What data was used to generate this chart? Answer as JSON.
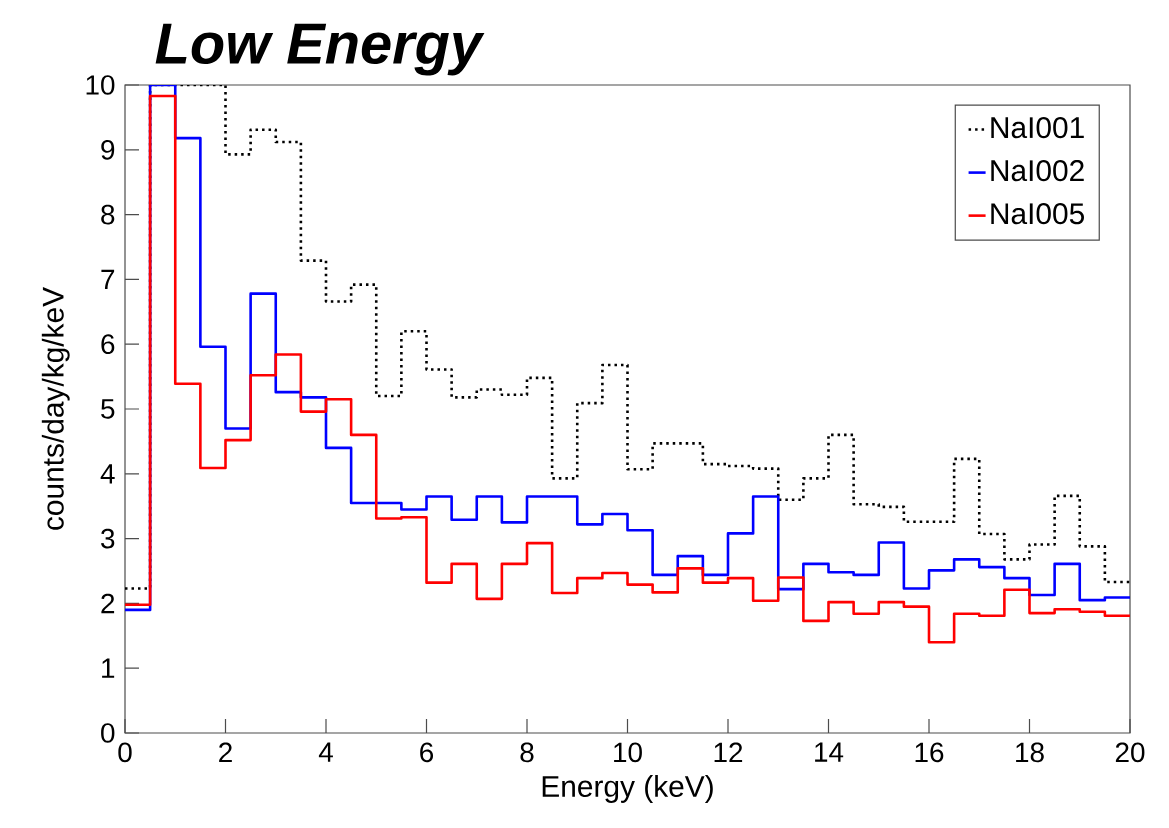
{
  "chart_data": {
    "type": "histogram",
    "title": "Low Energy",
    "xlabel": "Energy (keV)",
    "ylabel": "counts/day/kg/keV",
    "bins": [
      0,
      0.5,
      1,
      1.5,
      2,
      2.5,
      3,
      3.5,
      4,
      4.5,
      5,
      5.5,
      6,
      6.5,
      7,
      7.5,
      8,
      8.5,
      9,
      9.5,
      10,
      10.5,
      11,
      11.5,
      12,
      12.5,
      13,
      13.5,
      14,
      14.5,
      15,
      15.5,
      16,
      16.5,
      17,
      17.5,
      18,
      18.5,
      19,
      19.5,
      20
    ],
    "series": [
      {
        "name": "NaI001",
        "color": "#000000",
        "line_style": "dotted",
        "values": [
          2.23,
          10,
          10,
          10,
          8.93,
          9.31,
          9.12,
          7.29,
          6.66,
          6.92,
          5.2,
          6.2,
          5.61,
          5.18,
          5.3,
          5.22,
          5.48,
          3.93,
          5.09,
          5.68,
          4.07,
          4.47,
          4.47,
          4.15,
          4.12,
          4.08,
          3.6,
          3.93,
          4.6,
          3.53,
          3.49,
          3.26,
          3.26,
          4.23,
          3.07,
          2.68,
          2.91,
          3.66,
          2.88,
          2.33
        ]
      },
      {
        "name": "NaI002",
        "color": "#0000ff",
        "line_style": "solid",
        "values": [
          1.9,
          10,
          9.18,
          5.96,
          4.7,
          6.78,
          5.26,
          5.18,
          4.4,
          3.55,
          3.55,
          3.45,
          3.65,
          3.29,
          3.65,
          3.25,
          3.65,
          3.65,
          3.22,
          3.38,
          3.13,
          2.44,
          2.73,
          2.44,
          3.08,
          3.65,
          2.22,
          2.61,
          2.48,
          2.44,
          2.94,
          2.23,
          2.51,
          2.68,
          2.56,
          2.39,
          2.13,
          2.61,
          2.05,
          2.09
        ]
      },
      {
        "name": "NaI005",
        "color": "#ff0000",
        "line_style": "solid",
        "values": [
          1.98,
          9.83,
          5.39,
          4.09,
          4.52,
          5.52,
          5.84,
          4.96,
          5.15,
          4.6,
          3.31,
          3.33,
          2.32,
          2.61,
          2.07,
          2.61,
          2.93,
          2.16,
          2.39,
          2.47,
          2.29,
          2.17,
          2.54,
          2.32,
          2.39,
          2.04,
          2.4,
          1.73,
          2.02,
          1.84,
          2.02,
          1.95,
          1.4,
          1.84,
          1.81,
          2.21,
          1.85,
          1.91,
          1.87,
          1.81
        ]
      }
    ],
    "xlim": [
      0,
      20
    ],
    "xticks": [
      0,
      2,
      4,
      6,
      8,
      10,
      12,
      14,
      16,
      18,
      20
    ],
    "ylim": [
      0,
      10
    ],
    "yticks": [
      0,
      1,
      2,
      3,
      4,
      5,
      6,
      7,
      8,
      9,
      10
    ],
    "grid": false,
    "legend": "top right"
  }
}
